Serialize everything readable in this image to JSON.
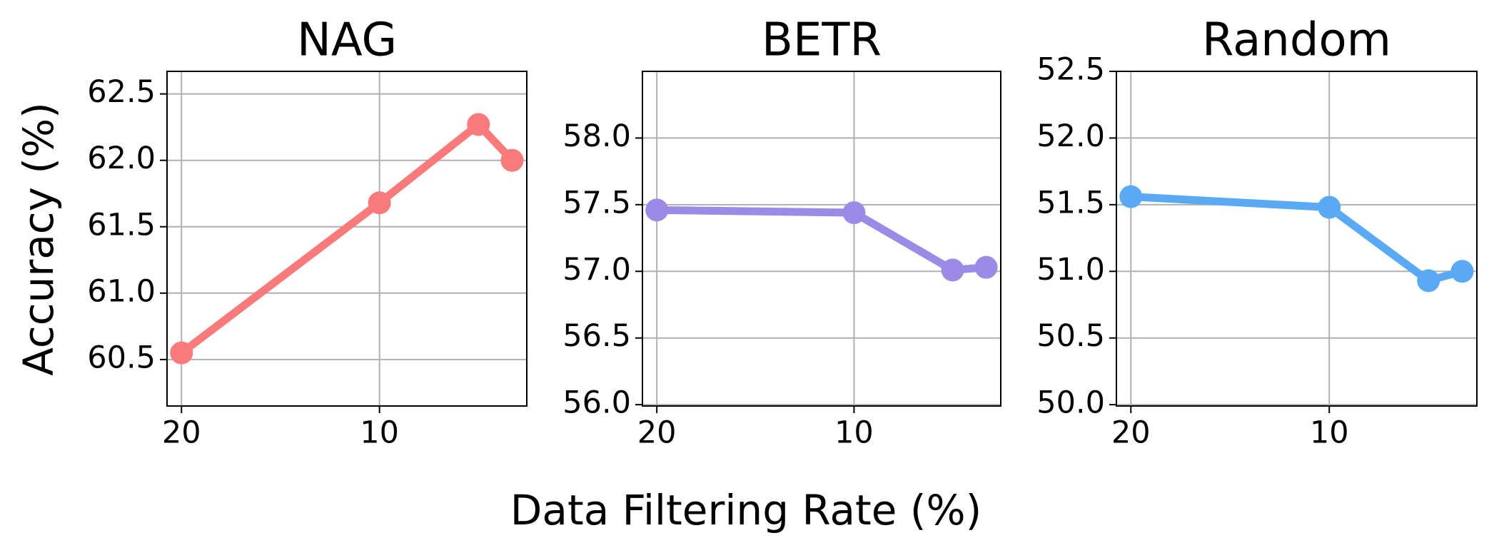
{
  "figure": {
    "xlabel": "Data Filtering Rate (%)",
    "ylabel": "Accuracy (%)"
  },
  "chart_data": [
    {
      "type": "line",
      "title": "NAG",
      "x": [
        20,
        10,
        5,
        3.3
      ],
      "series": [
        {
          "color": "#f87a7a",
          "values": [
            60.55,
            61.68,
            62.27,
            62.0
          ]
        }
      ],
      "xlim": [
        20.73,
        2.56
      ],
      "xticks": [
        20,
        10
      ],
      "ylim": [
        60.15,
        62.67
      ],
      "yticks": [
        {
          "value": 60.5,
          "label": "60.5"
        },
        {
          "value": 61.0,
          "label": "61.0"
        },
        {
          "value": 61.5,
          "label": "61.5"
        },
        {
          "value": 62.0,
          "label": "62.0"
        },
        {
          "value": 62.5,
          "label": "62.5"
        }
      ],
      "grid": true
    },
    {
      "type": "line",
      "title": "BETR",
      "x": [
        20,
        10,
        5,
        3.3
      ],
      "series": [
        {
          "color": "#9b8be6",
          "values": [
            57.46,
            57.44,
            57.01,
            57.03
          ]
        }
      ],
      "xlim": [
        20.73,
        2.56
      ],
      "xticks": [
        20,
        10
      ],
      "ylim": [
        55.99,
        58.5
      ],
      "yticks": [
        {
          "value": 56.0,
          "label": "56.0"
        },
        {
          "value": 56.5,
          "label": "56.5"
        },
        {
          "value": 57.0,
          "label": "57.0"
        },
        {
          "value": 57.5,
          "label": "57.5"
        },
        {
          "value": 58.0,
          "label": "58.0"
        }
      ],
      "grid": true
    },
    {
      "type": "line",
      "title": "Random",
      "x": [
        20,
        10,
        5,
        3.3
      ],
      "series": [
        {
          "color": "#5aa9f5",
          "values": [
            51.56,
            51.48,
            50.93,
            51.0
          ]
        }
      ],
      "xlim": [
        20.73,
        2.56
      ],
      "xticks": [
        20,
        10
      ],
      "ylim": [
        49.99,
        52.5
      ],
      "yticks": [
        {
          "value": 50.0,
          "label": "50.0"
        },
        {
          "value": 50.5,
          "label": "50.5"
        },
        {
          "value": 51.0,
          "label": "51.0"
        },
        {
          "value": 51.5,
          "label": "51.5"
        },
        {
          "value": 52.0,
          "label": "52.0"
        },
        {
          "value": 52.5,
          "label": "52.5"
        }
      ],
      "grid": true
    }
  ]
}
